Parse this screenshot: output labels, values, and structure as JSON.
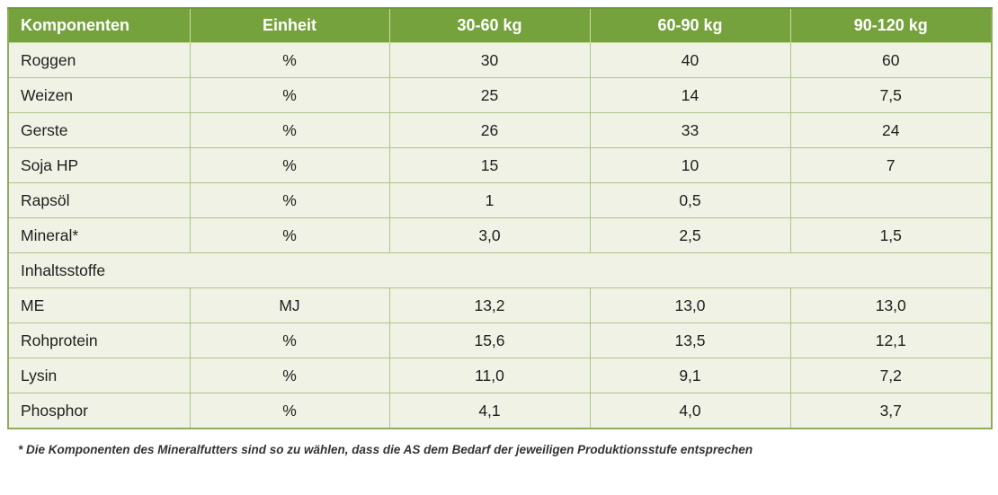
{
  "chart_data": {
    "type": "table",
    "columns": [
      "Komponenten",
      "Einheit",
      "30-60 kg",
      "60-90 kg",
      "90-120 kg"
    ],
    "component_rows": [
      {
        "name": "Roggen",
        "unit": "%",
        "values": [
          "30",
          "40",
          "60"
        ]
      },
      {
        "name": "Weizen",
        "unit": "%",
        "values": [
          "25",
          "14",
          "7,5"
        ]
      },
      {
        "name": "Gerste",
        "unit": "%",
        "values": [
          "26",
          "33",
          "24"
        ]
      },
      {
        "name": "Soja HP",
        "unit": "%",
        "values": [
          "15",
          "10",
          "7"
        ]
      },
      {
        "name": "Rapsöl",
        "unit": "%",
        "values": [
          "1",
          "0,5",
          ""
        ]
      },
      {
        "name": "Mineral*",
        "unit": "%",
        "values": [
          "3,0",
          "2,5",
          "1,5"
        ]
      }
    ],
    "section_label": "Inhaltsstoffe",
    "nutrient_rows": [
      {
        "name": "ME",
        "unit": "MJ",
        "values": [
          "13,2",
          "13,0",
          "13,0"
        ]
      },
      {
        "name": "Rohprotein",
        "unit": "%",
        "values": [
          "15,6",
          "13,5",
          "12,1"
        ]
      },
      {
        "name": "Lysin",
        "unit": "%",
        "values": [
          "11,0",
          "9,1",
          "7,2"
        ]
      },
      {
        "name": "Phosphor",
        "unit": "%",
        "values": [
          "4,1",
          "4,0",
          "3,7"
        ]
      }
    ]
  },
  "footnote": "* Die Komponenten des Mineralfutters sind so zu wählen, dass die AS dem Bedarf der jeweiligen Produktionsstufe entsprechen",
  "colors": {
    "header_bg": "#76a23d",
    "header_text": "#ffffff",
    "row_bg": "#f0f2e5",
    "inner_border": "#aec489",
    "outer_border": "#8fab5e",
    "body_text": "#1f1f1f",
    "footnote_text": "#333333"
  }
}
